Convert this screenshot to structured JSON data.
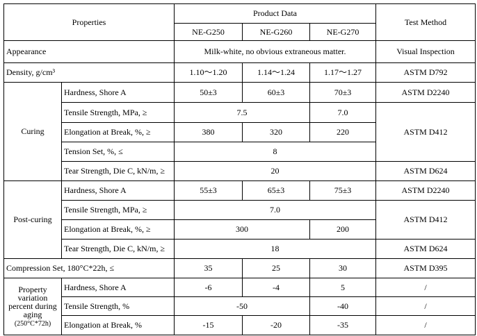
{
  "header": {
    "properties": "Properties",
    "product_data": "Product Data",
    "grades": [
      "NE-G250",
      "NE-G260",
      "NE-G270"
    ],
    "test_method": "Test Method"
  },
  "appearance": {
    "label": "Appearance",
    "value": "Milk-white, no obvious extraneous matter.",
    "method": "Visual Inspection"
  },
  "density": {
    "label": "Density, g/cm³",
    "values": [
      "1.10～1.20",
      "1.14～1.24",
      "1.17～1.27"
    ],
    "method": "ASTM D792"
  },
  "curing": {
    "label": "Curing",
    "rows": [
      {
        "label": "Hardness, Shore A",
        "values": [
          "50±3",
          "60±3",
          "70±3"
        ],
        "method": "ASTM D2240"
      },
      {
        "label": "Tensile Strength, MPa, ≥",
        "values": [
          "7.5",
          "7.0"
        ],
        "method": "ASTM D412"
      },
      {
        "label": "Elongation at Break, %, ≥",
        "values": [
          "380",
          "320",
          "220"
        ]
      },
      {
        "label": "Tension Set, %, ≤",
        "values": [
          "8"
        ]
      },
      {
        "label": "Tear Strength, Die C, kN/m, ≥",
        "values": [
          "20"
        ],
        "method": "ASTM D624"
      }
    ]
  },
  "post_curing": {
    "label": "Post-curing",
    "rows": [
      {
        "label": "Hardness, Shore A",
        "values": [
          "55±3",
          "65±3",
          "75±3"
        ],
        "method": "ASTM D2240"
      },
      {
        "label": "Tensile Strength, MPa, ≥",
        "values": [
          "7.0"
        ],
        "method": "ASTM D412"
      },
      {
        "label": "Elongation at Break, %, ≥",
        "values": [
          "300",
          "200"
        ]
      },
      {
        "label": "Tear Strength, Die C, kN/m, ≥",
        "values": [
          "18"
        ],
        "method": "ASTM D624"
      }
    ]
  },
  "compression": {
    "label": "Compression Set, 180°C*22h, ≤",
    "values": [
      "35",
      "25",
      "30"
    ],
    "method": "ASTM D395"
  },
  "aging": {
    "label": "Property variation percent during aging",
    "condition": "(250°C*72h)",
    "rows": [
      {
        "label": "Hardness, Shore A",
        "values": [
          "-6",
          "-4",
          "5"
        ],
        "method": "/"
      },
      {
        "label": "Tensile Strength, %",
        "values": [
          "-50",
          "-40"
        ],
        "method": "/"
      },
      {
        "label": "Elongation at Break, %",
        "values": [
          "-15",
          "-20",
          "-35"
        ],
        "method": "/"
      }
    ]
  }
}
